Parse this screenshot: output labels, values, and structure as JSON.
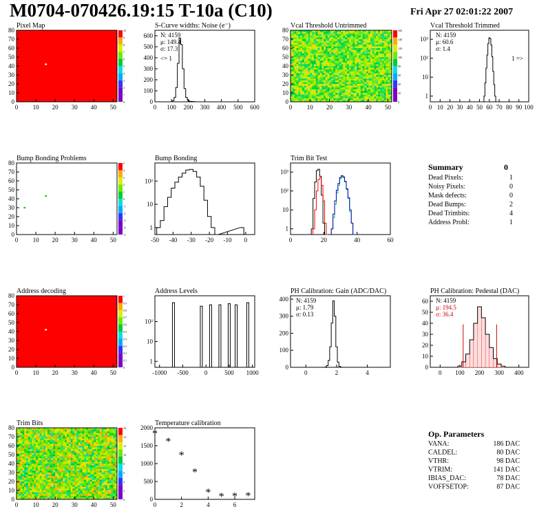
{
  "header": {
    "title": "M0704-070426.19:15 T-10a (C10)",
    "date": "Fri Apr 27 02:01:22 2007"
  },
  "panels": {
    "pixel_map": {
      "title": "Pixel Map"
    },
    "noise": {
      "title": "S-Curve widths: Noise (e⁻)",
      "stats": [
        "N: 4159",
        "μ: 149.4",
        "σ: 17.3"
      ],
      "underflow": "<= 1"
    },
    "vcal_untrimmed": {
      "title": "Vcal Threshold Untrimmed"
    },
    "vcal_trimmed": {
      "title": "Vcal Threshold Trimmed",
      "stats": [
        "N: 4159",
        "μ: 60.6",
        "σ:  1.4"
      ],
      "overflow": "1 =>"
    },
    "bump_problems": {
      "title": "Bump Bonding Problems"
    },
    "bump_bonding": {
      "title": "Bump Bonding"
    },
    "trim_bit_test": {
      "title": "Trim Bit Test"
    },
    "address_decoding": {
      "title": "Address decoding"
    },
    "address_levels": {
      "title": "Address Levels"
    },
    "ph_gain": {
      "title": "PH Calibration: Gain (ADC/DAC)",
      "stats": [
        "N: 4159",
        "μ: 1.79",
        "σ: 0.13"
      ]
    },
    "ph_pedestal": {
      "title": "PH Calibration: Pedestal (DAC)",
      "stats": [
        "N: 4159",
        "μ: 194.5",
        "σ: 36.4"
      ]
    },
    "trim_bits": {
      "title": "Trim Bits"
    },
    "temperature": {
      "title": "Temperature calibration"
    }
  },
  "summary": {
    "title": "Summary",
    "value": "0",
    "rows": [
      {
        "label": "Dead Pixels:",
        "value": "1"
      },
      {
        "label": "Noisy Pixels:",
        "value": "0"
      },
      {
        "label": "Mask defects:",
        "value": "0"
      },
      {
        "label": "Dead Bumps:",
        "value": "2"
      },
      {
        "label": "Dead Trimbits:",
        "value": "4"
      },
      {
        "label": "Address Probl:",
        "value": "1"
      }
    ]
  },
  "op_parameters": {
    "title": "Op. Parameters",
    "rows": [
      {
        "label": "VANA:",
        "value": "186 DAC"
      },
      {
        "label": "CALDEL:",
        "value": "80 DAC"
      },
      {
        "label": "VTHR:",
        "value": "98 DAC"
      },
      {
        "label": "VTRIM:",
        "value": "141 DAC"
      },
      {
        "label": "IBIAS_DAC:",
        "value": "78 DAC"
      },
      {
        "label": "VOFFSETOP:",
        "value": "87 DAC"
      }
    ]
  },
  "colors": {
    "red": "#ff0000",
    "green": "#00cc00",
    "blue": "#0000cc",
    "black": "#000000"
  },
  "chart_data": [
    {
      "id": "pixel_map",
      "type": "heatmap",
      "title": "Pixel Map",
      "xlim": [
        0,
        52
      ],
      "ylim": [
        0,
        80
      ],
      "xticks": [
        0,
        10,
        20,
        30,
        40,
        50
      ],
      "yticks": [
        0,
        10,
        20,
        30,
        40,
        50,
        60,
        70,
        80
      ],
      "zticks": [
        0,
        1,
        2,
        3,
        4,
        5,
        6,
        7,
        8,
        9,
        10
      ],
      "fill": "all 10",
      "marked_pixels": [
        {
          "x": 15,
          "y": 42
        }
      ]
    },
    {
      "id": "noise",
      "type": "histogram",
      "title": "S-Curve widths: Noise (e⁻)",
      "xlim": [
        0,
        600
      ],
      "ylim": [
        0,
        650
      ],
      "xticks": [
        0,
        100,
        200,
        300,
        400,
        500,
        600
      ],
      "yticks": [
        0,
        100,
        200,
        300,
        400,
        500,
        600
      ],
      "x": [
        100,
        110,
        120,
        130,
        140,
        150,
        160,
        170,
        180,
        190,
        200,
        210,
        220,
        230,
        240,
        250,
        260
      ],
      "values": [
        0,
        10,
        40,
        130,
        350,
        580,
        520,
        300,
        120,
        40,
        15,
        5,
        3,
        2,
        1,
        0,
        0
      ]
    },
    {
      "id": "vcal_untrimmed",
      "type": "heatmap",
      "title": "Vcal Threshold Untrimmed",
      "xlim": [
        0,
        52
      ],
      "ylim": [
        0,
        80
      ],
      "xticks": [
        0,
        10,
        20,
        30,
        40,
        50
      ],
      "yticks": [
        0,
        10,
        20,
        30,
        40,
        50,
        60,
        70,
        80
      ],
      "zticks": [
        0,
        20,
        40,
        60,
        80,
        100,
        120,
        140,
        160
      ],
      "fill": "mostly 70-100"
    },
    {
      "id": "vcal_trimmed",
      "type": "histogram",
      "title": "Vcal Threshold Trimmed",
      "log_y": true,
      "xlim": [
        0,
        100
      ],
      "ylim": [
        0.5,
        3000
      ],
      "xticks": [
        0,
        10,
        20,
        30,
        40,
        50,
        60,
        70,
        80,
        90,
        100
      ],
      "yticks": [
        1,
        10,
        100,
        1000
      ],
      "ytick_labels": [
        "1",
        "10",
        "10²",
        "10³"
      ],
      "x": [
        55,
        56,
        57,
        58,
        59,
        60,
        61,
        62,
        63,
        64,
        65,
        66,
        67
      ],
      "values": [
        1,
        5,
        30,
        150,
        600,
        1200,
        1100,
        500,
        120,
        20,
        4,
        1,
        0
      ]
    },
    {
      "id": "bump_problems",
      "type": "heatmap",
      "title": "Bump Bonding Problems",
      "xlim": [
        0,
        52
      ],
      "ylim": [
        0,
        80
      ],
      "xticks": [
        0,
        10,
        20,
        30,
        40,
        50
      ],
      "yticks": [
        0,
        10,
        20,
        30,
        40,
        50,
        60,
        70,
        80
      ],
      "zticks": [
        -5,
        -4,
        -3,
        -2,
        -1,
        0,
        1,
        2,
        3,
        4,
        5
      ],
      "marked_pixels": [
        {
          "x": 4,
          "y": 30
        },
        {
          "x": 15,
          "y": 43
        }
      ]
    },
    {
      "id": "bump_bonding",
      "type": "histogram",
      "title": "Bump Bonding",
      "log_y": true,
      "xlim": [
        -50,
        5
      ],
      "ylim": [
        0.5,
        600
      ],
      "xticks": [
        -50,
        -40,
        -30,
        -20,
        -10,
        0
      ],
      "yticks": [
        1,
        10,
        100
      ],
      "ytick_labels": [
        "1",
        "10",
        "10²"
      ],
      "x": [
        -48,
        -46,
        -44,
        -42,
        -40,
        -38,
        -36,
        -34,
        -32,
        -30,
        -28,
        -26,
        -24,
        -22,
        -20,
        -18,
        -16,
        -2,
        0
      ],
      "values": [
        1,
        2,
        8,
        20,
        50,
        90,
        150,
        220,
        300,
        320,
        260,
        150,
        60,
        15,
        3,
        1,
        0,
        1,
        0
      ]
    },
    {
      "id": "trim_bit_test",
      "type": "histogram",
      "title": "Trim Bit Test",
      "log_y": true,
      "xlim": [
        0,
        60
      ],
      "ylim": [
        0.5,
        3000
      ],
      "xticks": [
        0,
        20,
        40,
        60
      ],
      "yticks": [
        1,
        10,
        100,
        1000
      ],
      "ytick_labels": [
        "1",
        "10",
        "10²",
        "10³"
      ],
      "series": [
        {
          "color": "black",
          "x": [
            13,
            14,
            15,
            16,
            17,
            18,
            19,
            20,
            21
          ],
          "values": [
            1,
            40,
            300,
            1200,
            1400,
            600,
            60,
            2,
            0
          ]
        },
        {
          "color": "red",
          "x": [
            14,
            15,
            16,
            17,
            18,
            19,
            20,
            21,
            22
          ],
          "values": [
            1,
            10,
            100,
            400,
            500,
            200,
            30,
            2,
            0
          ]
        },
        {
          "color": "green",
          "x": [
            25,
            26,
            27,
            28,
            29,
            30,
            31,
            32,
            33,
            34,
            35,
            36,
            37,
            38
          ],
          "values": [
            1,
            4,
            20,
            80,
            200,
            450,
            600,
            500,
            300,
            120,
            40,
            8,
            2,
            0
          ]
        },
        {
          "color": "blue",
          "x": [
            25,
            26,
            27,
            28,
            29,
            30,
            31,
            32,
            33,
            34,
            35,
            36,
            37,
            38
          ],
          "values": [
            1,
            6,
            30,
            110,
            250,
            520,
            650,
            560,
            320,
            130,
            45,
            10,
            2,
            0
          ]
        }
      ]
    },
    {
      "id": "address_decoding",
      "type": "heatmap",
      "title": "Address decoding",
      "xlim": [
        0,
        52
      ],
      "ylim": [
        0,
        80
      ],
      "xticks": [
        0,
        10,
        20,
        30,
        40,
        50
      ],
      "yticks": [
        0,
        10,
        20,
        30,
        40,
        50,
        60,
        70,
        80
      ],
      "zticks": [
        0,
        0.1,
        0.2,
        0.3,
        0.4,
        0.5,
        0.6,
        0.7,
        0.8,
        0.9,
        1
      ],
      "fill": "all 1",
      "marked_pixels": [
        {
          "x": 15,
          "y": 42
        }
      ]
    },
    {
      "id": "address_levels",
      "type": "histogram",
      "title": "Address Levels",
      "log_y": true,
      "xlim": [
        -1100,
        1050
      ],
      "ylim": [
        0.5,
        2000
      ],
      "xticks": [
        -1000,
        -500,
        0,
        500,
        1000
      ],
      "yticks": [
        1,
        10,
        100
      ],
      "ytick_labels": [
        "1",
        "10",
        "10²"
      ],
      "peaks": [
        -700,
        -100,
        100,
        300,
        500,
        650,
        900
      ],
      "peak_values": [
        900,
        600,
        700,
        700,
        800,
        700,
        900
      ]
    },
    {
      "id": "ph_gain",
      "type": "histogram",
      "title": "PH Calibration: Gain (ADC/DAC)",
      "xlim": [
        -1,
        5.5
      ],
      "ylim": [
        0,
        420
      ],
      "xticks": [
        0,
        2,
        4
      ],
      "yticks": [
        0,
        100,
        200,
        300,
        400
      ],
      "x": [
        1.3,
        1.4,
        1.5,
        1.6,
        1.7,
        1.8,
        1.9,
        2.0,
        2.1,
        2.2,
        2.3
      ],
      "values": [
        2,
        10,
        40,
        120,
        260,
        390,
        300,
        120,
        30,
        5,
        1
      ]
    },
    {
      "id": "ph_pedestal",
      "type": "histogram",
      "title": "PH Calibration: Pedestal (DAC)",
      "xlim": [
        -50,
        450
      ],
      "ylim": [
        0,
        65
      ],
      "xticks": [
        0,
        100,
        200,
        300,
        400
      ],
      "yticks": [
        0,
        10,
        20,
        30,
        40,
        50,
        60
      ],
      "x": [
        100,
        120,
        140,
        160,
        180,
        200,
        220,
        240,
        260,
        280,
        300,
        320,
        340
      ],
      "values": [
        1,
        5,
        12,
        25,
        40,
        55,
        45,
        30,
        18,
        8,
        3,
        1,
        0
      ],
      "markers_x": [
        117,
        287
      ]
    },
    {
      "id": "trim_bits",
      "type": "heatmap",
      "title": "Trim Bits",
      "xlim": [
        0,
        52
      ],
      "ylim": [
        0,
        80
      ],
      "xticks": [
        0,
        10,
        20,
        30,
        40,
        50
      ],
      "yticks": [
        0,
        10,
        20,
        30,
        40,
        50,
        60,
        70,
        80
      ],
      "zticks": [
        0,
        2,
        4,
        6,
        8,
        10,
        12,
        14,
        16
      ],
      "fill": "mostly 6-11"
    },
    {
      "id": "temperature",
      "type": "scatter",
      "title": "Temperature calibration",
      "xlim": [
        0,
        7.5
      ],
      "ylim": [
        0,
        2000
      ],
      "xticks": [
        0,
        2,
        4,
        6
      ],
      "yticks": [
        0,
        500,
        1000,
        1500,
        2000
      ],
      "x": [
        0,
        1,
        2,
        3,
        4,
        5,
        6,
        7
      ],
      "values": [
        1840,
        1620,
        1230,
        760,
        190,
        80,
        90,
        100
      ]
    }
  ]
}
